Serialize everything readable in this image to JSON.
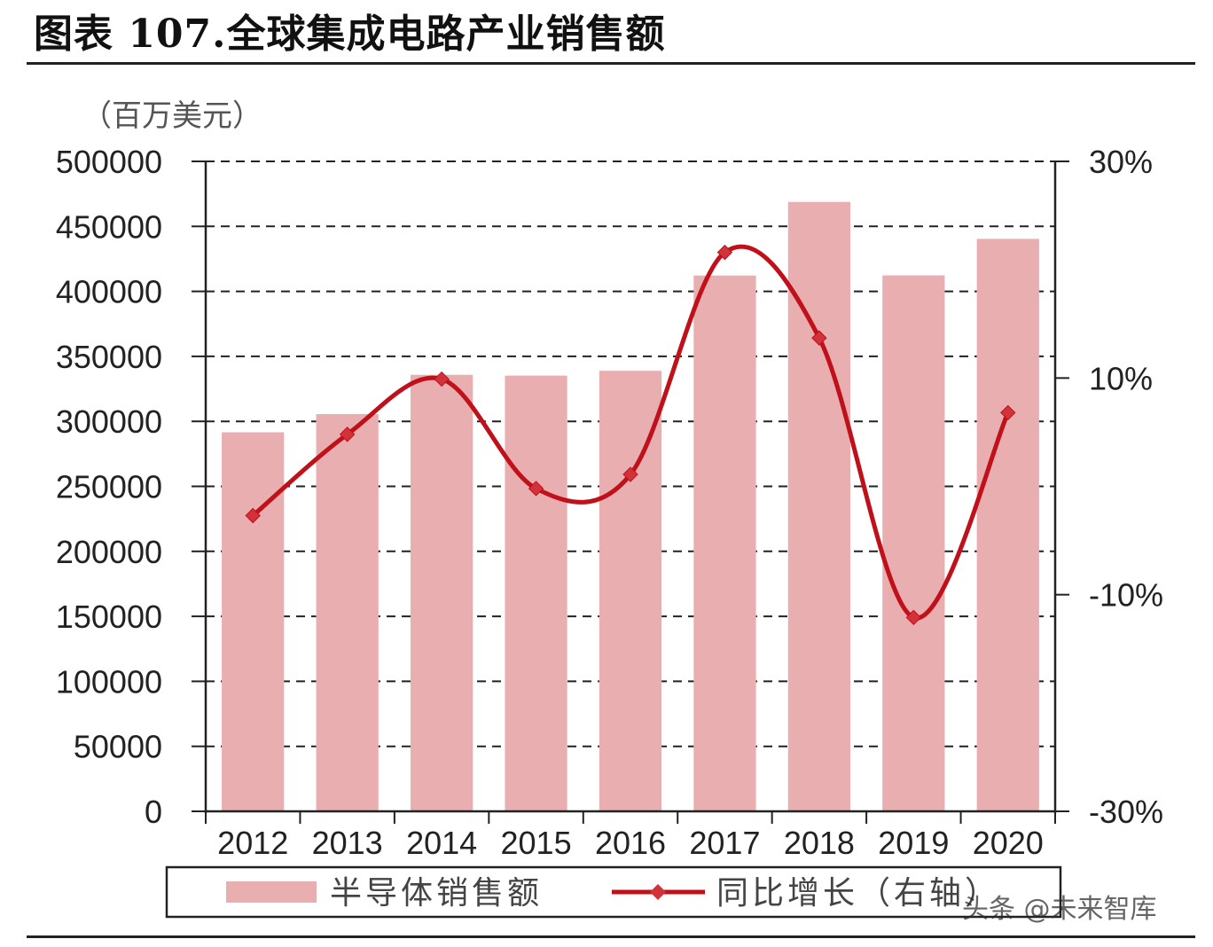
{
  "title": "图表 107.全球集成电路产业销售额",
  "unit_label": "（百万美元）",
  "watermark": "头条 @未来智库",
  "colors": {
    "bar": "#e9aeb0",
    "line": "#c0101a",
    "grid": "#222222",
    "axis": "#222222"
  },
  "chart_data": {
    "type": "bar",
    "categories": [
      "2012",
      "2013",
      "2014",
      "2015",
      "2016",
      "2017",
      "2018",
      "2019",
      "2020"
    ],
    "series": [
      {
        "name": "半导体销售额",
        "type": "bar",
        "axis": "left",
        "values": [
          291600,
          305600,
          335800,
          335200,
          338900,
          412200,
          468800,
          412300,
          440400
        ]
      },
      {
        "name": "同比增长（右轴）",
        "type": "line",
        "axis": "right",
        "values": [
          -2.7,
          4.8,
          9.9,
          -0.2,
          1.1,
          21.6,
          13.7,
          -12.1,
          6.8
        ]
      }
    ],
    "left_axis": {
      "min": 0,
      "max": 500000,
      "ticks": [
        "0",
        "50000",
        "100000",
        "150000",
        "200000",
        "250000",
        "300000",
        "350000",
        "400000",
        "450000",
        "500000"
      ]
    },
    "right_axis": {
      "min": -30,
      "max": 30,
      "ticks": [
        "-30%",
        "-10%",
        "10%",
        "30%"
      ]
    },
    "grid": true,
    "legend_position": "bottom"
  }
}
